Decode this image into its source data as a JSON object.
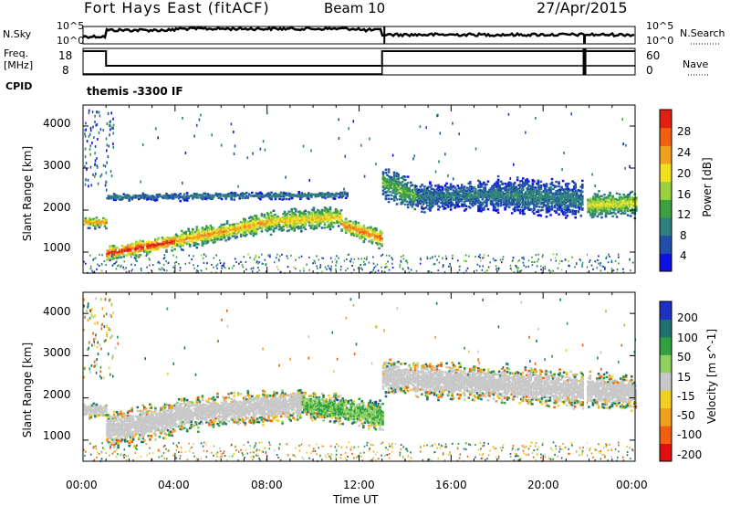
{
  "header": {
    "station": "Fort Hays East (fitACF)",
    "beam": "Beam 10",
    "date": "27/Apr/2015"
  },
  "panels": {
    "nsky": {
      "label": "N.Sky",
      "ticks": [
        "10^5",
        "10^0"
      ],
      "right_label": "N.Search",
      "right_ticks": [
        "10^5",
        "10^0"
      ]
    },
    "freq": {
      "label_top": "Freq.",
      "label_unit": "[MHz]",
      "ticks": [
        "18",
        "8"
      ],
      "right_label": "Nave",
      "right_ticks": [
        "60",
        "0"
      ]
    },
    "cpid": {
      "label": "CPID",
      "value": "themis -3300 IF"
    }
  },
  "chart_data": [
    {
      "type": "heatmap",
      "name": "power",
      "ylabel": "Slant Range [km]",
      "ylim": [
        500,
        4500
      ],
      "yticks": [
        "1000",
        "2000",
        "3000",
        "4000"
      ],
      "colorbar": {
        "label": "Power [dB]",
        "ticks": [
          "4",
          "8",
          "12",
          "16",
          "20",
          "24",
          "28"
        ],
        "colors": [
          "#1010e0",
          "#1f4fa8",
          "#2f7f7f",
          "#3ca040",
          "#9ad040",
          "#f0e020",
          "#f0a020",
          "#f06010",
          "#e02010"
        ]
      },
      "bands": [
        {
          "start_h": 0.0,
          "end_h": 1.0,
          "center_km": [
            1700,
            1690
          ],
          "width_km": 260,
          "peak_db": 20
        },
        {
          "start_h": 1.0,
          "end_h": 4.0,
          "center_km": [
            950,
            1250
          ],
          "width_km": 350,
          "peak_db": 26
        },
        {
          "start_h": 4.0,
          "end_h": 8.0,
          "center_km": [
            1250,
            1700
          ],
          "width_km": 450,
          "peak_db": 20
        },
        {
          "start_h": 8.0,
          "end_h": 11.2,
          "center_km": [
            1700,
            1820
          ],
          "width_km": 500,
          "peak_db": 18
        },
        {
          "start_h": 11.2,
          "end_h": 13.0,
          "center_km": [
            1650,
            1300
          ],
          "width_km": 420,
          "peak_db": 22
        },
        {
          "start_h": 1.0,
          "end_h": 11.5,
          "center_km": [
            2300,
            2350
          ],
          "width_km": 180,
          "peak_db": 8
        },
        {
          "start_h": 13.0,
          "end_h": 14.5,
          "center_km": [
            2650,
            2300
          ],
          "width_km": 700,
          "peak_db": 12
        },
        {
          "start_h": 14.5,
          "end_h": 18.0,
          "center_km": [
            2300,
            2350
          ],
          "width_km": 650,
          "peak_db": 8
        },
        {
          "start_h": 18.0,
          "end_h": 21.7,
          "center_km": [
            2350,
            2250
          ],
          "width_km": 800,
          "peak_db": 8
        },
        {
          "start_h": 21.9,
          "end_h": 24.0,
          "center_km": [
            2100,
            2150
          ],
          "width_km": 600,
          "peak_db": 16
        }
      ]
    },
    {
      "type": "heatmap",
      "name": "velocity",
      "ylabel": "Slant Range [km]",
      "xlabel": "Time UT",
      "ylim": [
        500,
        4500
      ],
      "xticks": [
        "00:00",
        "04:00",
        "08:00",
        "12:00",
        "16:00",
        "20:00",
        "00:00"
      ],
      "yticks": [
        "1000",
        "2000",
        "3000",
        "4000"
      ],
      "colorbar": {
        "label": "Velocity [m s^-1]",
        "ticks": [
          "200",
          "100",
          "50",
          "15",
          "-15",
          "-50",
          "-100",
          "-200"
        ],
        "colors": [
          "#2030c0",
          "#207070",
          "#30a040",
          "#90d060",
          "#c8c8c8",
          "#f0d020",
          "#f0a020",
          "#f06010",
          "#e01010"
        ]
      },
      "bands": [
        {
          "start_h": 0.0,
          "end_h": 1.0,
          "center_km": [
            1700,
            1700
          ],
          "width_km": 350,
          "v": 0
        },
        {
          "start_h": 1.0,
          "end_h": 4.0,
          "center_km": [
            1250,
            1500
          ],
          "width_km": 800,
          "v": 0
        },
        {
          "start_h": 4.0,
          "end_h": 9.5,
          "center_km": [
            1600,
            1850
          ],
          "width_km": 750,
          "v": 0
        },
        {
          "start_h": 9.5,
          "end_h": 13.0,
          "center_km": [
            1850,
            1550
          ],
          "width_km": 650,
          "v": 30
        },
        {
          "start_h": 13.0,
          "end_h": 24.0,
          "center_km": [
            2500,
            2100
          ],
          "width_km": 800,
          "v": 0
        }
      ]
    }
  ]
}
